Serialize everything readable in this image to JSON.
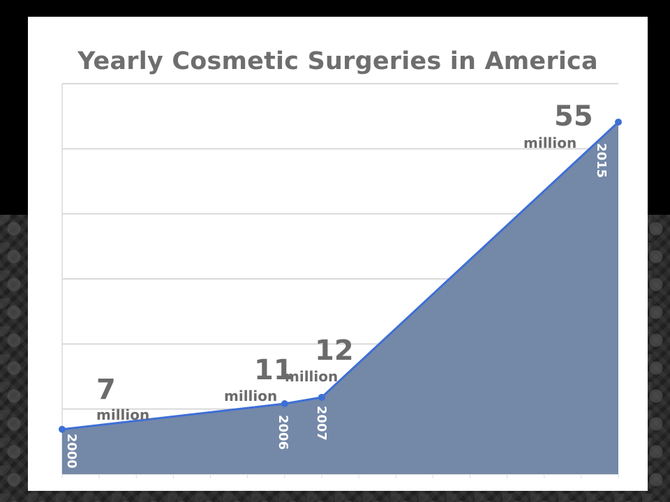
{
  "chart_data": {
    "type": "area",
    "title": "Yearly Cosmetic Surgeries in America",
    "xlabel": "",
    "ylabel": "",
    "x": [
      2000,
      2006,
      2007,
      2015
    ],
    "values": [
      7,
      11,
      12,
      55
    ],
    "value_labels": [
      "7",
      "11",
      "12",
      "55"
    ],
    "unit_label": "million",
    "x_labels": [
      "2000",
      "2006",
      "2007",
      "2015"
    ],
    "xlim": [
      2000,
      2015
    ],
    "ylim": [
      0,
      61
    ],
    "grid": true,
    "colors": {
      "line": "#3d6fd6",
      "fill": "#7488a8",
      "grid": "#d9d9d9",
      "text": "#6b6b6b"
    }
  }
}
